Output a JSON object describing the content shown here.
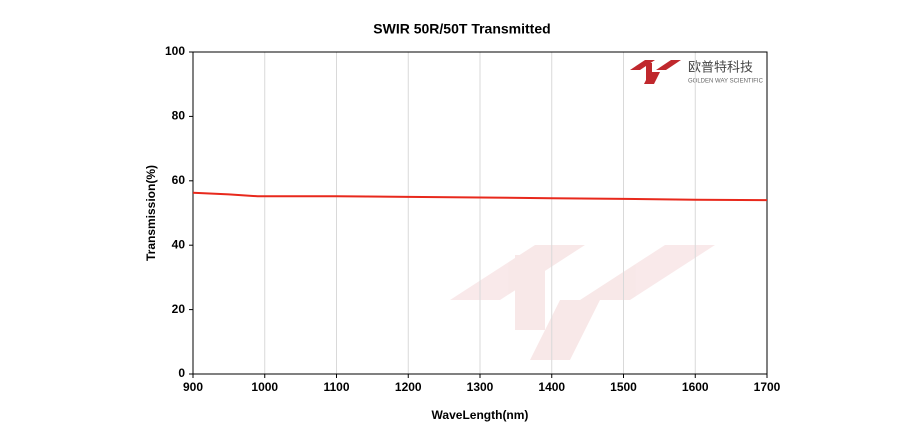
{
  "chart_data": {
    "type": "line",
    "title": "SWIR 50R/50T Transmitted",
    "x_label": "WaveLength(nm)",
    "y_label": "Transmission(%)",
    "x": [
      900,
      950,
      990,
      1100,
      1200,
      1300,
      1400,
      1500,
      1600,
      1700
    ],
    "series": [
      {
        "name": "Transmitted",
        "color": "#e8291c",
        "values": [
          56.3,
          55.8,
          55.2,
          55.2,
          55.0,
          54.8,
          54.6,
          54.4,
          54.1,
          54.0
        ]
      }
    ],
    "xlim": [
      900,
      1700
    ],
    "xticks": [
      900,
      1000,
      1100,
      1200,
      1300,
      1400,
      1500,
      1600,
      1700
    ],
    "ylim": [
      0,
      100
    ],
    "yticks": [
      0,
      20,
      40,
      60,
      80,
      100
    ],
    "grid": "x"
  },
  "logo": {
    "name": "欧普特科技",
    "tagline": "GOLDEN WAY SCIENTIFIC"
  }
}
